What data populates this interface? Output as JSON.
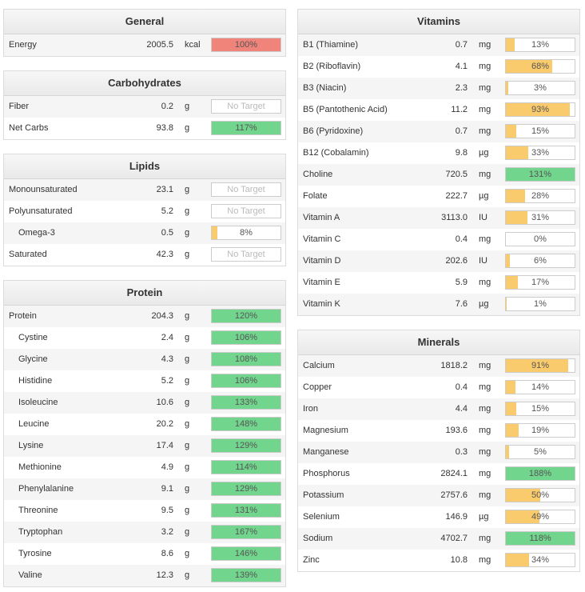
{
  "bar_colors": {
    "met": "#72d58d",
    "under": "#f9cb6c"
  },
  "columns": [
    {
      "panels": [
        {
          "title": "General",
          "rows": [
            {
              "name": "Energy",
              "amount": "2005.5",
              "unit": "kcal",
              "percent": {
                "value": 100,
                "label": "100%"
              },
              "color": "#f0837a"
            }
          ]
        },
        {
          "title": "Carbohydrates",
          "rows": [
            {
              "name": "Fiber",
              "amount": "0.2",
              "unit": "g",
              "percent": "No Target"
            },
            {
              "name": "Net Carbs",
              "amount": "93.8",
              "unit": "g",
              "percent": {
                "value": 117,
                "label": "117%"
              }
            }
          ]
        },
        {
          "title": "Lipids",
          "rows": [
            {
              "name": "Monounsaturated",
              "amount": "23.1",
              "unit": "g",
              "percent": "No Target"
            },
            {
              "name": "Polyunsaturated",
              "amount": "5.2",
              "unit": "g",
              "percent": "No Target"
            },
            {
              "name": "Omega-3",
              "amount": "0.5",
              "unit": "g",
              "percent": {
                "value": 8,
                "label": "8%"
              },
              "indent": true
            },
            {
              "name": "Saturated",
              "amount": "42.3",
              "unit": "g",
              "percent": "No Target"
            }
          ]
        },
        {
          "title": "Protein",
          "rows": [
            {
              "name": "Protein",
              "amount": "204.3",
              "unit": "g",
              "percent": {
                "value": 120,
                "label": "120%"
              }
            },
            {
              "name": "Cystine",
              "amount": "2.4",
              "unit": "g",
              "percent": {
                "value": 106,
                "label": "106%"
              },
              "indent": true
            },
            {
              "name": "Glycine",
              "amount": "4.3",
              "unit": "g",
              "percent": {
                "value": 108,
                "label": "108%"
              },
              "indent": true
            },
            {
              "name": "Histidine",
              "amount": "5.2",
              "unit": "g",
              "percent": {
                "value": 106,
                "label": "106%"
              },
              "indent": true
            },
            {
              "name": "Isoleucine",
              "amount": "10.6",
              "unit": "g",
              "percent": {
                "value": 133,
                "label": "133%"
              },
              "indent": true
            },
            {
              "name": "Leucine",
              "amount": "20.2",
              "unit": "g",
              "percent": {
                "value": 148,
                "label": "148%"
              },
              "indent": true
            },
            {
              "name": "Lysine",
              "amount": "17.4",
              "unit": "g",
              "percent": {
                "value": 129,
                "label": "129%"
              },
              "indent": true
            },
            {
              "name": "Methionine",
              "amount": "4.9",
              "unit": "g",
              "percent": {
                "value": 114,
                "label": "114%"
              },
              "indent": true
            },
            {
              "name": "Phenylalanine",
              "amount": "9.1",
              "unit": "g",
              "percent": {
                "value": 129,
                "label": "129%"
              },
              "indent": true
            },
            {
              "name": "Threonine",
              "amount": "9.5",
              "unit": "g",
              "percent": {
                "value": 131,
                "label": "131%"
              },
              "indent": true
            },
            {
              "name": "Tryptophan",
              "amount": "3.2",
              "unit": "g",
              "percent": {
                "value": 167,
                "label": "167%"
              },
              "indent": true
            },
            {
              "name": "Tyrosine",
              "amount": "8.6",
              "unit": "g",
              "percent": {
                "value": 146,
                "label": "146%"
              },
              "indent": true
            },
            {
              "name": "Valine",
              "amount": "12.3",
              "unit": "g",
              "percent": {
                "value": 139,
                "label": "139%"
              },
              "indent": true
            }
          ]
        }
      ]
    },
    {
      "panels": [
        {
          "title": "Vitamins",
          "rows": [
            {
              "name": "B1 (Thiamine)",
              "amount": "0.7",
              "unit": "mg",
              "percent": {
                "value": 13,
                "label": "13%"
              }
            },
            {
              "name": "B2 (Riboflavin)",
              "amount": "4.1",
              "unit": "mg",
              "percent": {
                "value": 68,
                "label": "68%"
              }
            },
            {
              "name": "B3 (Niacin)",
              "amount": "2.3",
              "unit": "mg",
              "percent": {
                "value": 3,
                "label": "3%"
              }
            },
            {
              "name": "B5 (Pantothenic Acid)",
              "amount": "11.2",
              "unit": "mg",
              "percent": {
                "value": 93,
                "label": "93%"
              }
            },
            {
              "name": "B6 (Pyridoxine)",
              "amount": "0.7",
              "unit": "mg",
              "percent": {
                "value": 15,
                "label": "15%"
              }
            },
            {
              "name": "B12 (Cobalamin)",
              "amount": "9.8",
              "unit": "µg",
              "percent": {
                "value": 33,
                "label": "33%"
              }
            },
            {
              "name": "Choline",
              "amount": "720.5",
              "unit": "mg",
              "percent": {
                "value": 131,
                "label": "131%"
              }
            },
            {
              "name": "Folate",
              "amount": "222.7",
              "unit": "µg",
              "percent": {
                "value": 28,
                "label": "28%"
              }
            },
            {
              "name": "Vitamin A",
              "amount": "3113.0",
              "unit": "IU",
              "percent": {
                "value": 31,
                "label": "31%"
              }
            },
            {
              "name": "Vitamin C",
              "amount": "0.4",
              "unit": "mg",
              "percent": {
                "value": 0,
                "label": "0%"
              }
            },
            {
              "name": "Vitamin D",
              "amount": "202.6",
              "unit": "IU",
              "percent": {
                "value": 6,
                "label": "6%"
              }
            },
            {
              "name": "Vitamin E",
              "amount": "5.9",
              "unit": "mg",
              "percent": {
                "value": 17,
                "label": "17%"
              }
            },
            {
              "name": "Vitamin K",
              "amount": "7.6",
              "unit": "µg",
              "percent": {
                "value": 1,
                "label": "1%"
              }
            }
          ]
        },
        {
          "title": "Minerals",
          "rows": [
            {
              "name": "Calcium",
              "amount": "1818.2",
              "unit": "mg",
              "percent": {
                "value": 91,
                "label": "91%"
              }
            },
            {
              "name": "Copper",
              "amount": "0.4",
              "unit": "mg",
              "percent": {
                "value": 14,
                "label": "14%"
              }
            },
            {
              "name": "Iron",
              "amount": "4.4",
              "unit": "mg",
              "percent": {
                "value": 15,
                "label": "15%"
              }
            },
            {
              "name": "Magnesium",
              "amount": "193.6",
              "unit": "mg",
              "percent": {
                "value": 19,
                "label": "19%"
              }
            },
            {
              "name": "Manganese",
              "amount": "0.3",
              "unit": "mg",
              "percent": {
                "value": 5,
                "label": "5%"
              }
            },
            {
              "name": "Phosphorus",
              "amount": "2824.1",
              "unit": "mg",
              "percent": {
                "value": 188,
                "label": "188%"
              }
            },
            {
              "name": "Potassium",
              "amount": "2757.6",
              "unit": "mg",
              "percent": {
                "value": 50,
                "label": "50%"
              }
            },
            {
              "name": "Selenium",
              "amount": "146.9",
              "unit": "µg",
              "percent": {
                "value": 49,
                "label": "49%"
              }
            },
            {
              "name": "Sodium",
              "amount": "4702.7",
              "unit": "mg",
              "percent": {
                "value": 118,
                "label": "118%"
              }
            },
            {
              "name": "Zinc",
              "amount": "10.8",
              "unit": "mg",
              "percent": {
                "value": 34,
                "label": "34%"
              }
            }
          ]
        }
      ]
    }
  ]
}
